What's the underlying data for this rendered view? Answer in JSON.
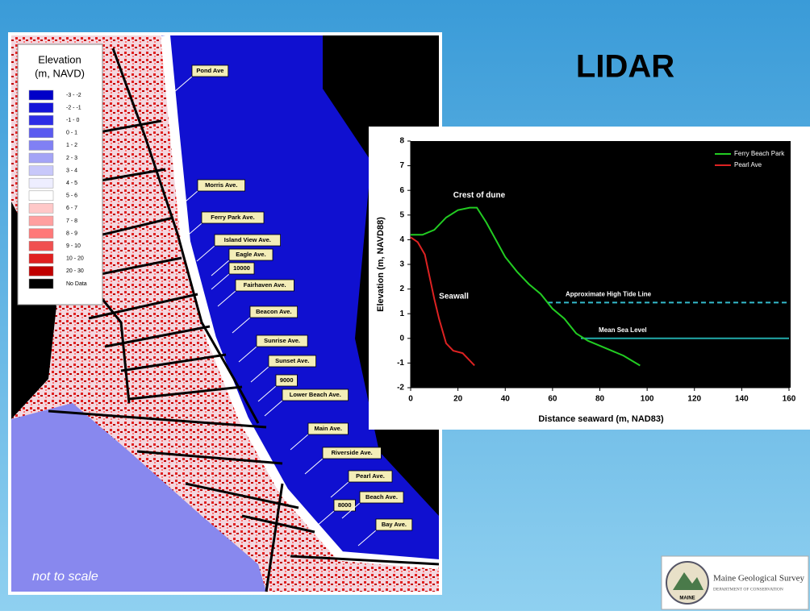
{
  "title": "LIDAR",
  "map": {
    "legend": {
      "title": [
        "Elevation",
        "(m, NAVD)"
      ],
      "entries": [
        {
          "label": "-3 - -2",
          "color": "#0000c8"
        },
        {
          "label": "-2 - -1",
          "color": "#1414d8"
        },
        {
          "label": "-1 - 0",
          "color": "#2d2de6"
        },
        {
          "label": "0 - 1",
          "color": "#5a5af0"
        },
        {
          "label": "1 - 2",
          "color": "#8080f4"
        },
        {
          "label": "2 - 3",
          "color": "#a4a4f6"
        },
        {
          "label": "3 - 4",
          "color": "#c8c8fa"
        },
        {
          "label": "4 - 5",
          "color": "#eeeeff"
        },
        {
          "label": "5 - 6",
          "color": "#ffffff"
        },
        {
          "label": "6 - 7",
          "color": "#ffc8c8"
        },
        {
          "label": "7 - 8",
          "color": "#ffa0a0"
        },
        {
          "label": "8 - 9",
          "color": "#ff7878"
        },
        {
          "label": "9 - 10",
          "color": "#f05050"
        },
        {
          "label": "10 - 20",
          "color": "#e02020"
        },
        {
          "label": "20 - 30",
          "color": "#c00000"
        },
        {
          "label": "No Data",
          "color": "#000000"
        }
      ]
    },
    "streets": [
      "Pond Ave",
      "Morris Ave.",
      "Ferry Park Ave.",
      "Island View Ave.",
      "Eagle Ave.",
      "10000",
      "Fairhaven Ave.",
      "Beacon Ave.",
      "Sunrise Ave.",
      "Sunset Ave.",
      "9000",
      "Lower Beach Ave.",
      "Main Ave.",
      "Riverside Ave.",
      "Pearl Ave.",
      "8000",
      "Beach Ave.",
      "Bay Ave."
    ],
    "note": "not to scale"
  },
  "logo": {
    "name": "Maine Geological Survey",
    "department": "DEPARTMENT OF CONSERVATION",
    "seal": "MAINE"
  },
  "chart_data": {
    "type": "line",
    "xlabel": "Distance seaward (m, NAD83)",
    "ylabel": "Elevation (m, NAVD88)",
    "xlim": [
      0,
      160
    ],
    "xticks": [
      0,
      20,
      40,
      60,
      80,
      100,
      120,
      140,
      160
    ],
    "ylim": [
      -2,
      8
    ],
    "yticks": [
      -2,
      -1,
      0,
      1,
      2,
      3,
      4,
      5,
      6,
      7,
      8
    ],
    "legend": "upper right",
    "series": [
      {
        "name": "Ferry Beach Park",
        "color": "#22cc22",
        "x": [
          0,
          2,
          5,
          10,
          15,
          20,
          25,
          28,
          32,
          36,
          40,
          45,
          50,
          55,
          60,
          65,
          70,
          75,
          80,
          90,
          97
        ],
        "y": [
          4.2,
          4.2,
          4.2,
          4.4,
          4.9,
          5.2,
          5.3,
          5.3,
          4.7,
          4.0,
          3.3,
          2.7,
          2.2,
          1.8,
          1.2,
          0.8,
          0.2,
          -0.1,
          -0.3,
          -0.7,
          -1.1
        ]
      },
      {
        "name": "Pearl Ave",
        "color": "#dd2222",
        "x": [
          0,
          3,
          6,
          8,
          10,
          12,
          15,
          18,
          22,
          25,
          27
        ],
        "y": [
          4.1,
          3.9,
          3.4,
          2.5,
          1.6,
          0.8,
          -0.2,
          -0.5,
          -0.6,
          -0.9,
          -1.1
        ]
      }
    ],
    "reference_lines": [
      {
        "label": "Approximate High Tide Line",
        "y": 1.45,
        "x": [
          58,
          160
        ],
        "color": "#33bbcc",
        "dashed": true
      },
      {
        "label": "Mean Sea Level",
        "y": 0,
        "x": [
          72,
          160
        ],
        "color": "#22aaaa",
        "dashed": false
      }
    ],
    "annotations": [
      {
        "text": "Crest of dune",
        "x": 18,
        "y": 5.8
      },
      {
        "text": "Seawall",
        "x": 12,
        "y": 1.7
      }
    ]
  }
}
